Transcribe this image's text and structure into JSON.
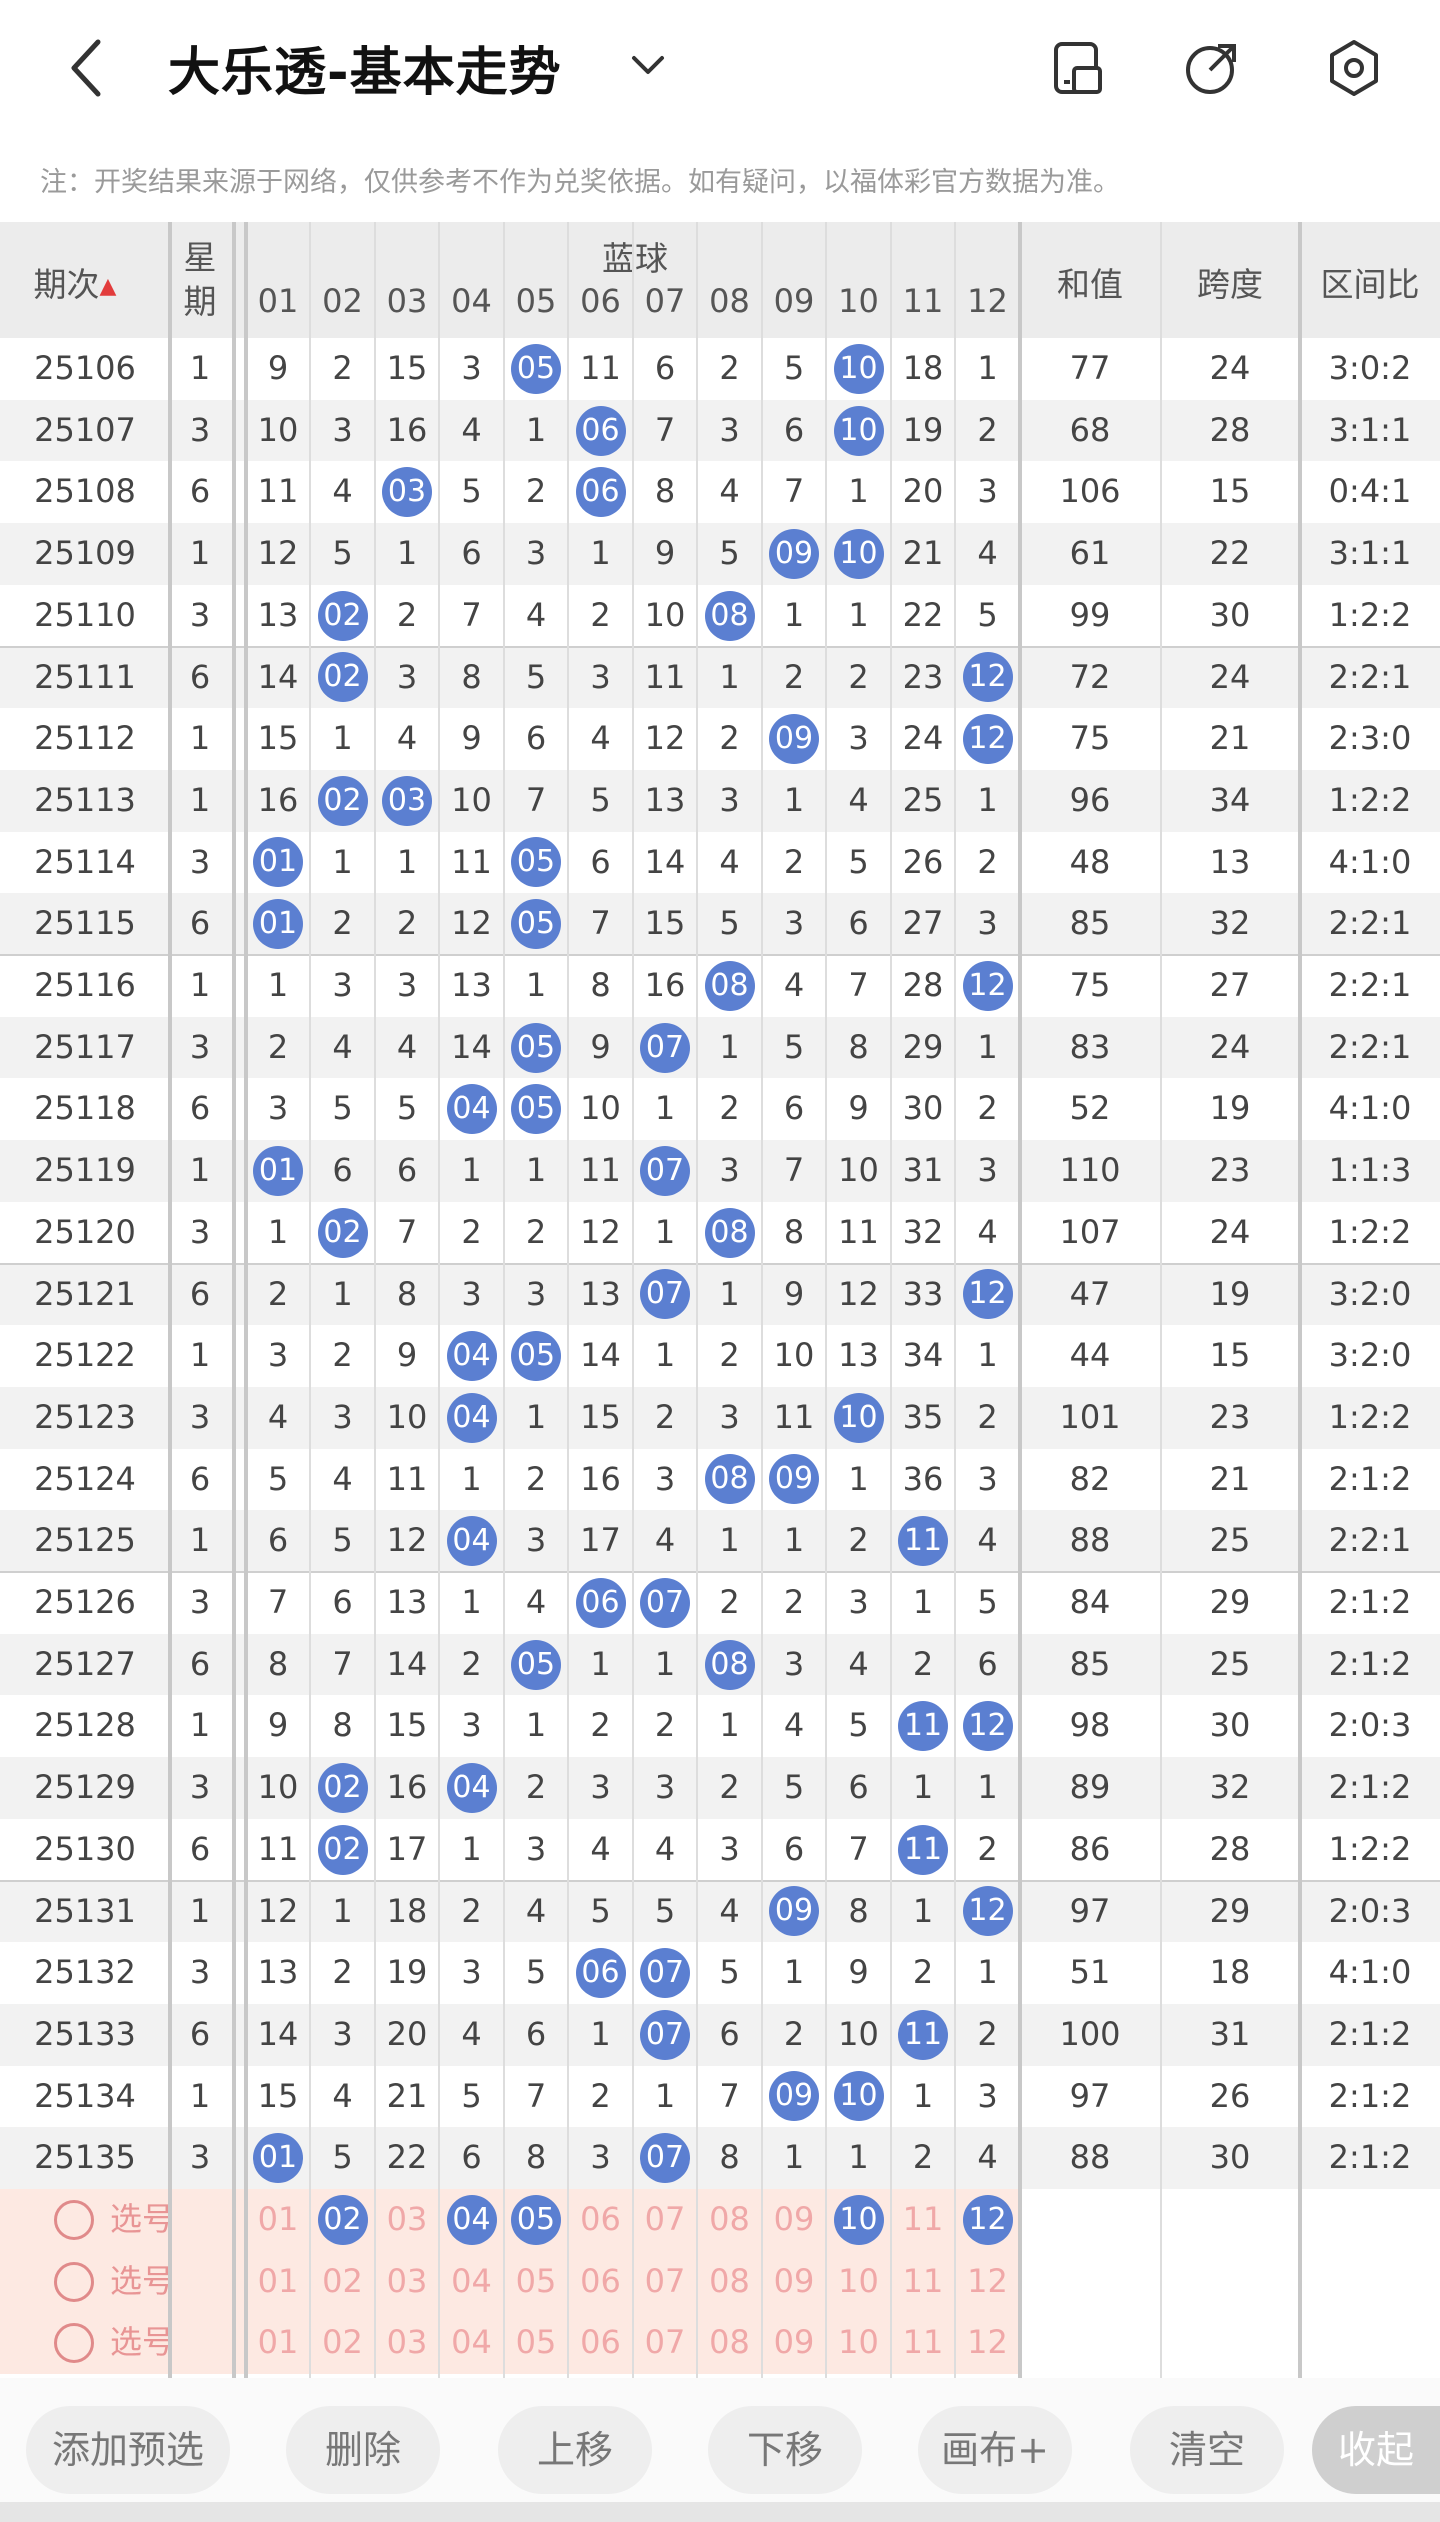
{
  "header": {
    "title": "大乐透-基本走势",
    "icons": [
      "back-icon",
      "chevron-down-icon",
      "device-icon",
      "share-icon",
      "settings-icon"
    ]
  },
  "notice": "注：开奖结果来源于网络，仅供参考不作为兑奖依据。如有疑问，以福体彩官方数据为准。",
  "table": {
    "headers": {
      "issue": "期次",
      "week": "星期",
      "blue": "蓝球",
      "sum": "和值",
      "span": "跨度",
      "ratio": "区间比",
      "columns": [
        "01",
        "02",
        "03",
        "04",
        "05",
        "06",
        "07",
        "08",
        "09",
        "10",
        "11",
        "12"
      ]
    },
    "rows": [
      {
        "issue": "25106",
        "week": "1",
        "cells": [
          "9",
          "2",
          "15",
          "3",
          "05",
          "11",
          "6",
          "2",
          "5",
          "10",
          "18",
          "1"
        ],
        "hits": [
          5,
          10
        ],
        "sum": "77",
        "span": "24",
        "ratio": "3:0:2"
      },
      {
        "issue": "25107",
        "week": "3",
        "cells": [
          "10",
          "3",
          "16",
          "4",
          "1",
          "06",
          "7",
          "3",
          "6",
          "10",
          "19",
          "2"
        ],
        "hits": [
          6,
          10
        ],
        "sum": "68",
        "span": "28",
        "ratio": "3:1:1"
      },
      {
        "issue": "25108",
        "week": "6",
        "cells": [
          "11",
          "4",
          "03",
          "5",
          "2",
          "06",
          "8",
          "4",
          "7",
          "1",
          "20",
          "3"
        ],
        "hits": [
          3,
          6
        ],
        "sum": "106",
        "span": "15",
        "ratio": "0:4:1"
      },
      {
        "issue": "25109",
        "week": "1",
        "cells": [
          "12",
          "5",
          "1",
          "6",
          "3",
          "1",
          "9",
          "5",
          "09",
          "10",
          "21",
          "4"
        ],
        "hits": [
          9,
          10
        ],
        "sum": "61",
        "span": "22",
        "ratio": "3:1:1"
      },
      {
        "issue": "25110",
        "week": "3",
        "cells": [
          "13",
          "02",
          "2",
          "7",
          "4",
          "2",
          "10",
          "08",
          "1",
          "1",
          "22",
          "5"
        ],
        "hits": [
          2,
          8
        ],
        "sum": "99",
        "span": "30",
        "ratio": "1:2:2"
      },
      {
        "issue": "25111",
        "week": "6",
        "cells": [
          "14",
          "02",
          "3",
          "8",
          "5",
          "3",
          "11",
          "1",
          "2",
          "2",
          "23",
          "12"
        ],
        "hits": [
          2,
          12
        ],
        "sum": "72",
        "span": "24",
        "ratio": "2:2:1"
      },
      {
        "issue": "25112",
        "week": "1",
        "cells": [
          "15",
          "1",
          "4",
          "9",
          "6",
          "4",
          "12",
          "2",
          "09",
          "3",
          "24",
          "12"
        ],
        "hits": [
          9,
          12
        ],
        "sum": "75",
        "span": "21",
        "ratio": "2:3:0"
      },
      {
        "issue": "25113",
        "week": "1",
        "cells": [
          "16",
          "02",
          "03",
          "10",
          "7",
          "5",
          "13",
          "3",
          "1",
          "4",
          "25",
          "1"
        ],
        "hits": [
          2,
          3
        ],
        "sum": "96",
        "span": "34",
        "ratio": "1:2:2"
      },
      {
        "issue": "25114",
        "week": "3",
        "cells": [
          "01",
          "1",
          "1",
          "11",
          "05",
          "6",
          "14",
          "4",
          "2",
          "5",
          "26",
          "2"
        ],
        "hits": [
          1,
          5
        ],
        "sum": "48",
        "span": "13",
        "ratio": "4:1:0"
      },
      {
        "issue": "25115",
        "week": "6",
        "cells": [
          "01",
          "2",
          "2",
          "12",
          "05",
          "7",
          "15",
          "5",
          "3",
          "6",
          "27",
          "3"
        ],
        "hits": [
          1,
          5
        ],
        "sum": "85",
        "span": "32",
        "ratio": "2:2:1"
      },
      {
        "issue": "25116",
        "week": "1",
        "cells": [
          "1",
          "3",
          "3",
          "13",
          "1",
          "8",
          "16",
          "08",
          "4",
          "7",
          "28",
          "12"
        ],
        "hits": [
          8,
          12
        ],
        "sum": "75",
        "span": "27",
        "ratio": "2:2:1"
      },
      {
        "issue": "25117",
        "week": "3",
        "cells": [
          "2",
          "4",
          "4",
          "14",
          "05",
          "9",
          "07",
          "1",
          "5",
          "8",
          "29",
          "1"
        ],
        "hits": [
          5,
          7
        ],
        "sum": "83",
        "span": "24",
        "ratio": "2:2:1"
      },
      {
        "issue": "25118",
        "week": "6",
        "cells": [
          "3",
          "5",
          "5",
          "04",
          "05",
          "10",
          "1",
          "2",
          "6",
          "9",
          "30",
          "2"
        ],
        "hits": [
          4,
          5
        ],
        "sum": "52",
        "span": "19",
        "ratio": "4:1:0"
      },
      {
        "issue": "25119",
        "week": "1",
        "cells": [
          "01",
          "6",
          "6",
          "1",
          "1",
          "11",
          "07",
          "3",
          "7",
          "10",
          "31",
          "3"
        ],
        "hits": [
          1,
          7
        ],
        "sum": "110",
        "span": "23",
        "ratio": "1:1:3"
      },
      {
        "issue": "25120",
        "week": "3",
        "cells": [
          "1",
          "02",
          "7",
          "2",
          "2",
          "12",
          "1",
          "08",
          "8",
          "11",
          "32",
          "4"
        ],
        "hits": [
          2,
          8
        ],
        "sum": "107",
        "span": "24",
        "ratio": "1:2:2"
      },
      {
        "issue": "25121",
        "week": "6",
        "cells": [
          "2",
          "1",
          "8",
          "3",
          "3",
          "13",
          "07",
          "1",
          "9",
          "12",
          "33",
          "12"
        ],
        "hits": [
          7,
          12
        ],
        "sum": "47",
        "span": "19",
        "ratio": "3:2:0"
      },
      {
        "issue": "25122",
        "week": "1",
        "cells": [
          "3",
          "2",
          "9",
          "04",
          "05",
          "14",
          "1",
          "2",
          "10",
          "13",
          "34",
          "1"
        ],
        "hits": [
          4,
          5
        ],
        "sum": "44",
        "span": "15",
        "ratio": "3:2:0"
      },
      {
        "issue": "25123",
        "week": "3",
        "cells": [
          "4",
          "3",
          "10",
          "04",
          "1",
          "15",
          "2",
          "3",
          "11",
          "10",
          "35",
          "2"
        ],
        "hits": [
          4,
          10
        ],
        "sum": "101",
        "span": "23",
        "ratio": "1:2:2"
      },
      {
        "issue": "25124",
        "week": "6",
        "cells": [
          "5",
          "4",
          "11",
          "1",
          "2",
          "16",
          "3",
          "08",
          "09",
          "1",
          "36",
          "3"
        ],
        "hits": [
          8,
          9
        ],
        "sum": "82",
        "span": "21",
        "ratio": "2:1:2"
      },
      {
        "issue": "25125",
        "week": "1",
        "cells": [
          "6",
          "5",
          "12",
          "04",
          "3",
          "17",
          "4",
          "1",
          "1",
          "2",
          "11",
          "4"
        ],
        "hits": [
          4,
          11
        ],
        "sum": "88",
        "span": "25",
        "ratio": "2:2:1"
      },
      {
        "issue": "25126",
        "week": "3",
        "cells": [
          "7",
          "6",
          "13",
          "1",
          "4",
          "06",
          "07",
          "2",
          "2",
          "3",
          "1",
          "5"
        ],
        "hits": [
          6,
          7
        ],
        "sum": "84",
        "span": "29",
        "ratio": "2:1:2"
      },
      {
        "issue": "25127",
        "week": "6",
        "cells": [
          "8",
          "7",
          "14",
          "2",
          "05",
          "1",
          "1",
          "08",
          "3",
          "4",
          "2",
          "6"
        ],
        "hits": [
          5,
          8
        ],
        "sum": "85",
        "span": "25",
        "ratio": "2:1:2"
      },
      {
        "issue": "25128",
        "week": "1",
        "cells": [
          "9",
          "8",
          "15",
          "3",
          "1",
          "2",
          "2",
          "1",
          "4",
          "5",
          "11",
          "12"
        ],
        "hits": [
          11,
          12
        ],
        "sum": "98",
        "span": "30",
        "ratio": "2:0:3"
      },
      {
        "issue": "25129",
        "week": "3",
        "cells": [
          "10",
          "02",
          "16",
          "04",
          "2",
          "3",
          "3",
          "2",
          "5",
          "6",
          "1",
          "1"
        ],
        "hits": [
          2,
          4
        ],
        "sum": "89",
        "span": "32",
        "ratio": "2:1:2"
      },
      {
        "issue": "25130",
        "week": "6",
        "cells": [
          "11",
          "02",
          "17",
          "1",
          "3",
          "4",
          "4",
          "3",
          "6",
          "7",
          "11",
          "2"
        ],
        "hits": [
          2,
          11
        ],
        "sum": "86",
        "span": "28",
        "ratio": "1:2:2"
      },
      {
        "issue": "25131",
        "week": "1",
        "cells": [
          "12",
          "1",
          "18",
          "2",
          "4",
          "5",
          "5",
          "4",
          "09",
          "8",
          "1",
          "12"
        ],
        "hits": [
          9,
          12
        ],
        "sum": "97",
        "span": "29",
        "ratio": "2:0:3"
      },
      {
        "issue": "25132",
        "week": "3",
        "cells": [
          "13",
          "2",
          "19",
          "3",
          "5",
          "06",
          "07",
          "5",
          "1",
          "9",
          "2",
          "1"
        ],
        "hits": [
          6,
          7
        ],
        "sum": "51",
        "span": "18",
        "ratio": "4:1:0"
      },
      {
        "issue": "25133",
        "week": "6",
        "cells": [
          "14",
          "3",
          "20",
          "4",
          "6",
          "1",
          "07",
          "6",
          "2",
          "10",
          "11",
          "2"
        ],
        "hits": [
          7,
          11
        ],
        "sum": "100",
        "span": "31",
        "ratio": "2:1:2"
      },
      {
        "issue": "25134",
        "week": "1",
        "cells": [
          "15",
          "4",
          "21",
          "5",
          "7",
          "2",
          "1",
          "7",
          "09",
          "10",
          "1",
          "3"
        ],
        "hits": [
          9,
          10
        ],
        "sum": "97",
        "span": "26",
        "ratio": "2:1:2"
      },
      {
        "issue": "25135",
        "week": "3",
        "cells": [
          "01",
          "5",
          "22",
          "6",
          "8",
          "3",
          "07",
          "8",
          "1",
          "1",
          "2",
          "4"
        ],
        "hits": [
          1,
          7
        ],
        "sum": "88",
        "span": "30",
        "ratio": "2:1:2"
      }
    ],
    "selection": {
      "label": "选号",
      "numbers": [
        "01",
        "02",
        "03",
        "04",
        "05",
        "06",
        "07",
        "08",
        "09",
        "10",
        "11",
        "12"
      ],
      "rows": [
        {
          "selected": [
            2,
            4,
            5,
            10,
            12
          ]
        },
        {
          "selected": []
        },
        {
          "selected": []
        }
      ]
    }
  },
  "toolbar": {
    "buttons": [
      "添加预选",
      "删除",
      "上移",
      "下移",
      "画布+",
      "清空",
      "收起"
    ]
  },
  "colors": {
    "ball": "#5b7fd1",
    "line": "#5b7fd1",
    "arrow": "#ee3d7a",
    "selection_bg": "#fde9e2",
    "selection_text": "#f0a8a8"
  }
}
